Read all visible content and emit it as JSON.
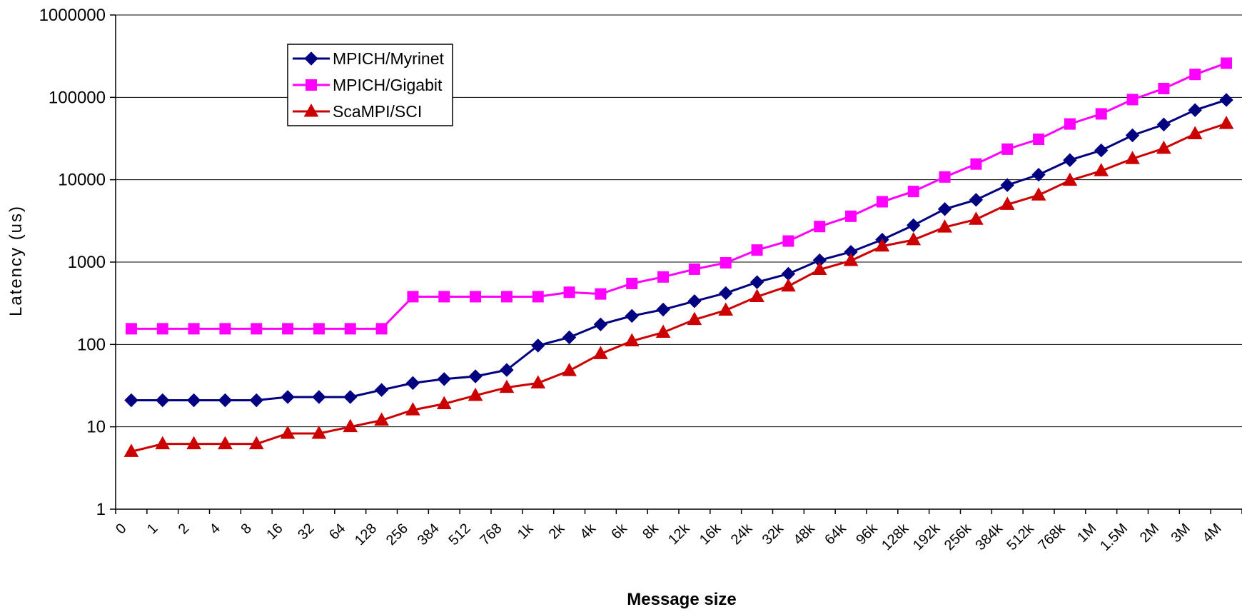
{
  "chart_data": {
    "type": "line",
    "title": "",
    "xlabel": "Message size",
    "ylabel": "Latency (us)",
    "yscale": "log",
    "ylim": [
      1,
      1000000
    ],
    "yticks": [
      "1",
      "10",
      "100",
      "1000",
      "10000",
      "100000",
      "1000000"
    ],
    "grid": "horizontal",
    "legend_position": "top-left",
    "categories": [
      "0",
      "1",
      "2",
      "4",
      "8",
      "16",
      "32",
      "64",
      "128",
      "256",
      "384",
      "512",
      "768",
      "1k",
      "2k",
      "4k",
      "6k",
      "8k",
      "12k",
      "16k",
      "24k",
      "32k",
      "48k",
      "64k",
      "96k",
      "128k",
      "192k",
      "256k",
      "384k",
      "512k",
      "768k",
      "1M",
      "1.5M",
      "2M",
      "3M",
      "4M"
    ],
    "series": [
      {
        "name": "MPICH/Myrinet",
        "color": "#000080",
        "marker": "diamond",
        "values": [
          21,
          21,
          21,
          21,
          21,
          23,
          23,
          23,
          28,
          34,
          38,
          41,
          49,
          97,
          122,
          175,
          222,
          265,
          335,
          420,
          570,
          720,
          1050,
          1330,
          1870,
          2800,
          4400,
          5700,
          8600,
          11500,
          17300,
          22700,
          34600,
          46800,
          70000,
          93000
        ]
      },
      {
        "name": "MPICH/Gigabit",
        "color": "#ff00ff",
        "marker": "square",
        "values": [
          155,
          155,
          155,
          155,
          155,
          155,
          155,
          155,
          155,
          380,
          380,
          380,
          380,
          380,
          430,
          410,
          550,
          660,
          820,
          980,
          1400,
          1800,
          2700,
          3600,
          5400,
          7200,
          10800,
          15500,
          23500,
          31000,
          47500,
          63000,
          94000,
          128000,
          190000,
          260000
        ]
      },
      {
        "name": "ScaMPI/SCI",
        "color": "#cc0000",
        "marker": "triangle",
        "values": [
          5,
          6.2,
          6.2,
          6.2,
          6.2,
          8.3,
          8.3,
          10,
          12,
          16,
          19,
          24,
          30,
          34,
          48,
          77,
          110,
          140,
          200,
          260,
          380,
          510,
          810,
          1040,
          1560,
          1860,
          2650,
          3300,
          5000,
          6500,
          9800,
          12800,
          18000,
          24000,
          36000,
          48000
        ]
      }
    ]
  }
}
